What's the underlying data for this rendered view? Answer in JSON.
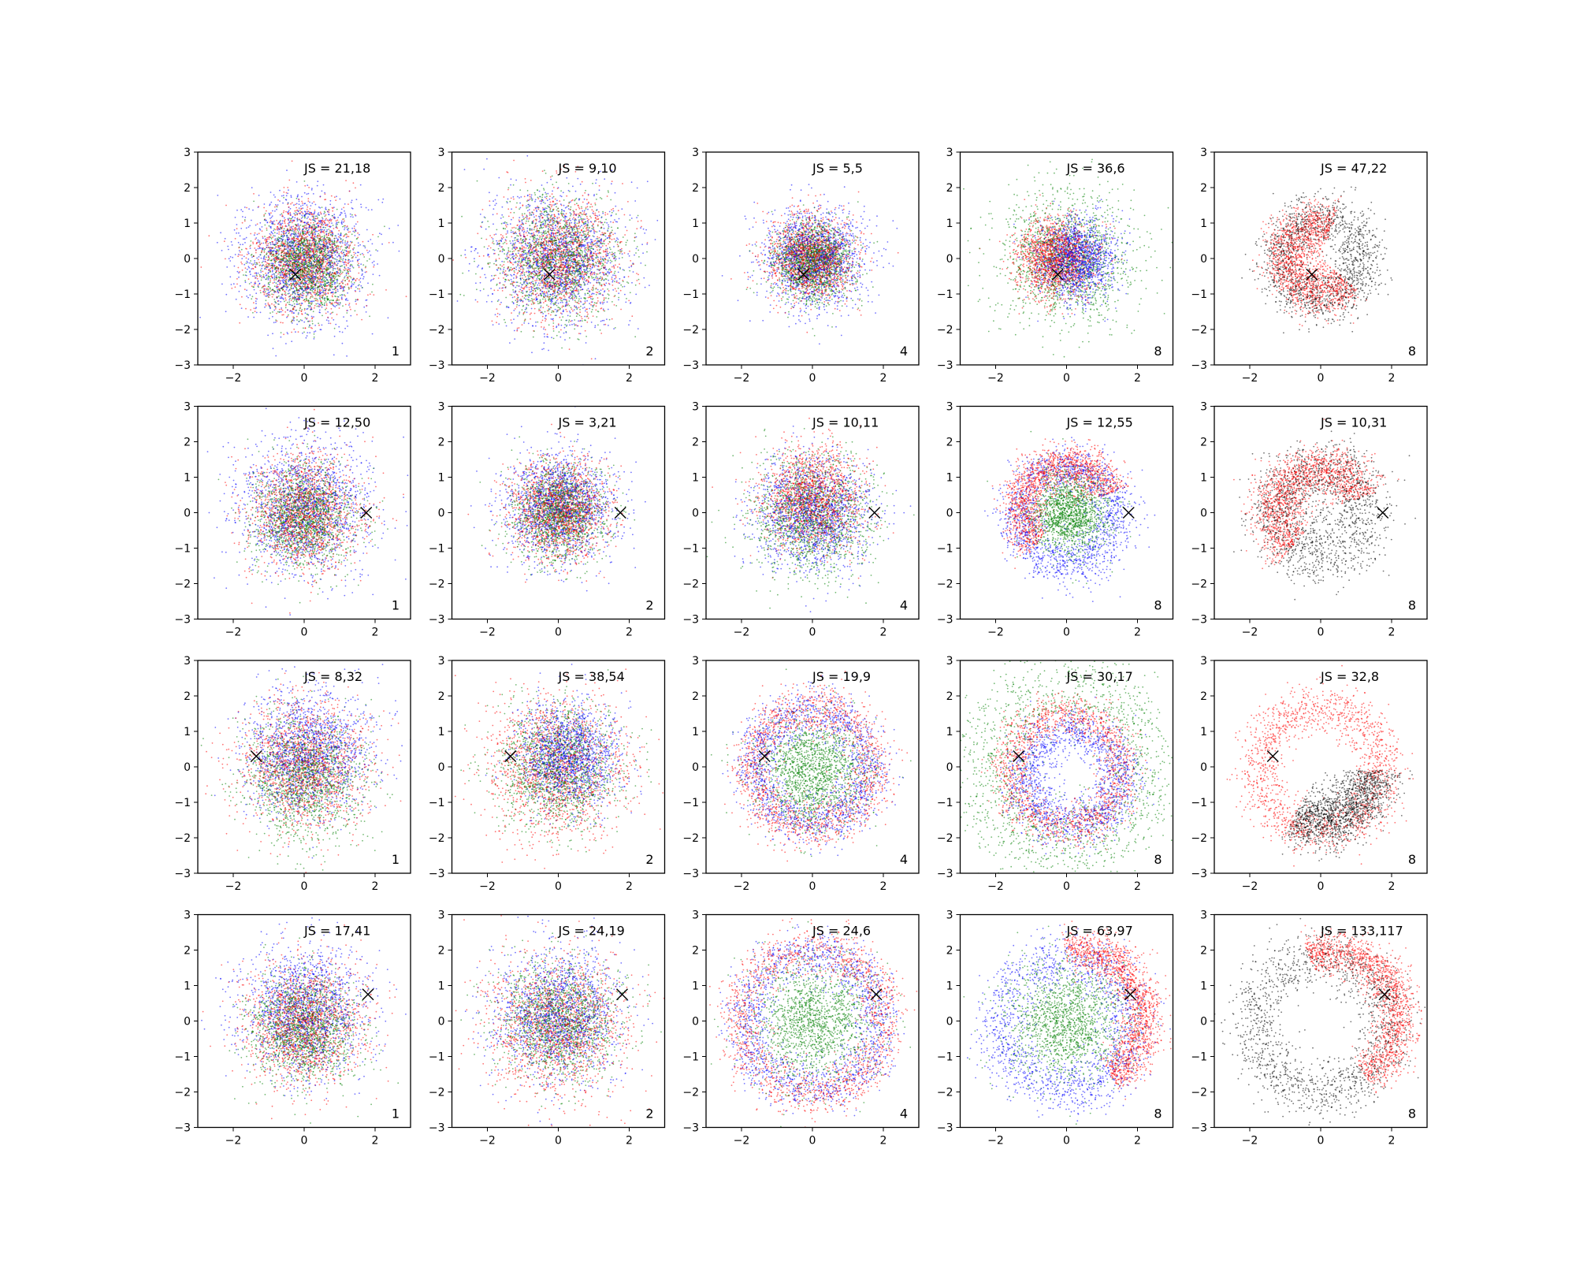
{
  "figure": {
    "colors": {
      "red": "#ff0000",
      "blue": "#0000ff",
      "green": "#008000",
      "black": "#000000"
    },
    "marker_symbol": "x-cross"
  },
  "chart_data": [
    {
      "type": "scatter",
      "row": 1,
      "col": 1,
      "annotation": "JS = 21,18",
      "corner_label": "1",
      "xlim": [
        -3,
        3
      ],
      "ylim": [
        -3,
        3
      ],
      "xticks": [
        -2,
        0,
        2
      ],
      "yticks": [
        -3,
        -2,
        -1,
        0,
        1,
        2,
        3
      ],
      "marker": {
        "x": -0.25,
        "y": -0.45
      },
      "points_per_series": 1500,
      "pattern": "blob",
      "series": [
        {
          "color": "#0000ff",
          "dist": "gauss",
          "cx": 0,
          "cy": 0,
          "s": 0.9
        },
        {
          "color": "#ff0000",
          "dist": "gauss",
          "cx": 0,
          "cy": -0.05,
          "s": 0.75
        },
        {
          "color": "#008000",
          "dist": "gauss",
          "cx": 0.05,
          "cy": -0.15,
          "s": 0.65
        }
      ]
    },
    {
      "type": "scatter",
      "row": 1,
      "col": 2,
      "annotation": "JS = 9,10",
      "corner_label": "2",
      "xlim": [
        -3,
        3
      ],
      "ylim": [
        -3,
        3
      ],
      "xticks": [
        -2,
        0,
        2
      ],
      "yticks": [
        -3,
        -2,
        -1,
        0,
        1,
        2,
        3
      ],
      "marker": {
        "x": -0.25,
        "y": -0.45
      },
      "points_per_series": 1500,
      "pattern": "blob",
      "series": [
        {
          "color": "#0000ff",
          "dist": "gauss",
          "cx": 0,
          "cy": 0,
          "s": 0.95
        },
        {
          "color": "#ff0000",
          "dist": "gauss",
          "cx": 0,
          "cy": 0,
          "s": 0.85
        },
        {
          "color": "#008000",
          "dist": "gauss",
          "cx": 0,
          "cy": 0,
          "s": 0.85
        }
      ]
    },
    {
      "type": "scatter",
      "row": 1,
      "col": 3,
      "annotation": "JS = 5,5",
      "corner_label": "4",
      "xlim": [
        -3,
        3
      ],
      "ylim": [
        -3,
        3
      ],
      "xticks": [
        -2,
        0,
        2
      ],
      "yticks": [
        -3,
        -2,
        -1,
        0,
        1,
        2,
        3
      ],
      "marker": {
        "x": -0.25,
        "y": -0.45
      },
      "points_per_series": 1500,
      "pattern": "blob",
      "series": [
        {
          "color": "#0000ff",
          "dist": "gauss",
          "cx": 0,
          "cy": 0,
          "s": 0.7
        },
        {
          "color": "#ff0000",
          "dist": "gauss",
          "cx": 0,
          "cy": 0,
          "s": 0.6
        },
        {
          "color": "#008000",
          "dist": "gauss",
          "cx": 0,
          "cy": -0.1,
          "s": 0.55
        }
      ]
    },
    {
      "type": "scatter",
      "row": 1,
      "col": 4,
      "annotation": "JS = 36,6",
      "corner_label": "8",
      "xlim": [
        -3,
        3
      ],
      "ylim": [
        -3,
        3
      ],
      "xticks": [
        -2,
        0,
        2
      ],
      "yticks": [
        -3,
        -2,
        -1,
        0,
        1,
        2,
        3
      ],
      "marker": {
        "x": -0.25,
        "y": -0.45
      },
      "points_per_series": 1500,
      "pattern": "blob",
      "series": [
        {
          "color": "#008000",
          "dist": "gauss",
          "cx": 0,
          "cy": 0,
          "s": 0.95
        },
        {
          "color": "#ff0000",
          "dist": "gauss",
          "cx": -0.3,
          "cy": 0,
          "s": 0.55
        },
        {
          "color": "#0000ff",
          "dist": "gauss",
          "cx": 0.3,
          "cy": 0,
          "s": 0.55
        }
      ]
    },
    {
      "type": "scatter",
      "row": 1,
      "col": 5,
      "annotation": "JS = 47,22",
      "corner_label": "8",
      "xlim": [
        -3,
        3
      ],
      "ylim": [
        -3,
        3
      ],
      "xticks": [
        -2,
        0,
        2
      ],
      "yticks": [
        -3,
        -2,
        -1,
        0,
        1,
        2,
        3
      ],
      "marker": {
        "x": -0.25,
        "y": -0.45
      },
      "points_per_series": 1500,
      "pattern": "ring",
      "series": [
        {
          "color": "#000000",
          "dist": "ring",
          "cx": 0,
          "cy": 0,
          "r": 1.2,
          "w": 0.35
        },
        {
          "color": "#ff0000",
          "dist": "arc",
          "cx": 0,
          "cy": 0,
          "r": 1.0,
          "w": 0.35,
          "a0": 70,
          "a1": 320
        }
      ]
    },
    {
      "type": "scatter",
      "row": 2,
      "col": 1,
      "annotation": "JS = 12,50",
      "corner_label": "1",
      "xlim": [
        -3,
        3
      ],
      "ylim": [
        -3,
        3
      ],
      "xticks": [
        -2,
        0,
        2
      ],
      "yticks": [
        -3,
        -2,
        -1,
        0,
        1,
        2,
        3
      ],
      "marker": {
        "x": 1.75,
        "y": 0.0
      },
      "points_per_series": 1500,
      "pattern": "blob",
      "series": [
        {
          "color": "#0000ff",
          "dist": "gauss",
          "cx": 0,
          "cy": 0.2,
          "s": 0.95
        },
        {
          "color": "#ff0000",
          "dist": "gauss",
          "cx": 0,
          "cy": 0,
          "s": 0.8
        },
        {
          "color": "#008000",
          "dist": "gauss",
          "cx": 0,
          "cy": -0.1,
          "s": 0.7
        }
      ]
    },
    {
      "type": "scatter",
      "row": 2,
      "col": 2,
      "annotation": "JS = 3,21",
      "corner_label": "2",
      "xlim": [
        -3,
        3
      ],
      "ylim": [
        -3,
        3
      ],
      "xticks": [
        -2,
        0,
        2
      ],
      "yticks": [
        -3,
        -2,
        -1,
        0,
        1,
        2,
        3
      ],
      "marker": {
        "x": 1.75,
        "y": 0.0
      },
      "points_per_series": 1500,
      "pattern": "blob",
      "series": [
        {
          "color": "#0000ff",
          "dist": "gauss",
          "cx": 0,
          "cy": 0.2,
          "s": 0.75
        },
        {
          "color": "#ff0000",
          "dist": "gauss",
          "cx": 0,
          "cy": 0.1,
          "s": 0.7
        },
        {
          "color": "#008000",
          "dist": "gauss",
          "cx": 0,
          "cy": 0,
          "s": 0.65
        }
      ]
    },
    {
      "type": "scatter",
      "row": 2,
      "col": 3,
      "annotation": "JS = 10,11",
      "corner_label": "4",
      "xlim": [
        -3,
        3
      ],
      "ylim": [
        -3,
        3
      ],
      "xticks": [
        -2,
        0,
        2
      ],
      "yticks": [
        -3,
        -2,
        -1,
        0,
        1,
        2,
        3
      ],
      "marker": {
        "x": 1.75,
        "y": 0.0
      },
      "points_per_series": 1500,
      "pattern": "blob",
      "series": [
        {
          "color": "#008000",
          "dist": "gauss",
          "cx": 0,
          "cy": -0.1,
          "s": 0.85
        },
        {
          "color": "#0000ff",
          "dist": "gauss",
          "cx": 0,
          "cy": 0,
          "s": 0.8
        },
        {
          "color": "#ff0000",
          "dist": "gauss",
          "cx": 0,
          "cy": 0.4,
          "s": 0.7
        }
      ]
    },
    {
      "type": "scatter",
      "row": 2,
      "col": 4,
      "annotation": "JS = 12,55",
      "corner_label": "8",
      "xlim": [
        -3,
        3
      ],
      "ylim": [
        -3,
        3
      ],
      "xticks": [
        -2,
        0,
        2
      ],
      "yticks": [
        -3,
        -2,
        -1,
        0,
        1,
        2,
        3
      ],
      "marker": {
        "x": 1.75,
        "y": 0.0
      },
      "points_per_series": 1500,
      "pattern": "ring",
      "series": [
        {
          "color": "#0000ff",
          "dist": "ring",
          "cx": 0,
          "cy": -0.1,
          "r": 1.4,
          "w": 0.35
        },
        {
          "color": "#ff0000",
          "dist": "arc",
          "cx": 0,
          "cy": 0.1,
          "r": 1.3,
          "w": 0.3,
          "a0": 20,
          "a1": 230
        },
        {
          "color": "#008000",
          "dist": "gauss",
          "cx": 0.1,
          "cy": 0,
          "s": 0.55
        }
      ]
    },
    {
      "type": "scatter",
      "row": 2,
      "col": 5,
      "annotation": "JS = 10,31",
      "corner_label": "8",
      "xlim": [
        -3,
        3
      ],
      "ylim": [
        -3,
        3
      ],
      "xticks": [
        -2,
        0,
        2
      ],
      "yticks": [
        -3,
        -2,
        -1,
        0,
        1,
        2,
        3
      ],
      "marker": {
        "x": 1.75,
        "y": 0.0
      },
      "points_per_series": 1500,
      "pattern": "ring",
      "series": [
        {
          "color": "#000000",
          "dist": "ring",
          "cx": 0,
          "cy": 0,
          "r": 1.3,
          "w": 0.45
        },
        {
          "color": "#ff0000",
          "dist": "arc",
          "cx": 0,
          "cy": 0,
          "r": 1.3,
          "w": 0.35,
          "a0": 20,
          "a1": 230
        }
      ]
    },
    {
      "type": "scatter",
      "row": 3,
      "col": 1,
      "annotation": "JS = 8,32",
      "corner_label": "1",
      "xlim": [
        -3,
        3
      ],
      "ylim": [
        -3,
        3
      ],
      "xticks": [
        -2,
        0,
        2
      ],
      "yticks": [
        -3,
        -2,
        -1,
        0,
        1,
        2,
        3
      ],
      "marker": {
        "x": -1.35,
        "y": 0.3
      },
      "points_per_series": 1500,
      "pattern": "blob",
      "series": [
        {
          "color": "#0000ff",
          "dist": "gauss",
          "cx": 0.1,
          "cy": 0.4,
          "s": 0.85
        },
        {
          "color": "#ff0000",
          "dist": "gauss",
          "cx": 0,
          "cy": 0,
          "s": 0.9
        },
        {
          "color": "#008000",
          "dist": "gauss",
          "cx": 0,
          "cy": -0.3,
          "s": 0.85
        }
      ]
    },
    {
      "type": "scatter",
      "row": 3,
      "col": 2,
      "annotation": "JS = 38,54",
      "corner_label": "2",
      "xlim": [
        -3,
        3
      ],
      "ylim": [
        -3,
        3
      ],
      "xticks": [
        -2,
        0,
        2
      ],
      "yticks": [
        -3,
        -2,
        -1,
        0,
        1,
        2,
        3
      ],
      "marker": {
        "x": -1.35,
        "y": 0.3
      },
      "points_per_series": 1500,
      "pattern": "blob",
      "series": [
        {
          "color": "#ff0000",
          "dist": "gauss",
          "cx": 0,
          "cy": 0,
          "s": 1.0
        },
        {
          "color": "#008000",
          "dist": "gauss",
          "cx": 0,
          "cy": 0,
          "s": 0.85
        },
        {
          "color": "#0000ff",
          "dist": "gauss",
          "cx": 0.3,
          "cy": 0.3,
          "s": 0.7
        }
      ]
    },
    {
      "type": "scatter",
      "row": 3,
      "col": 3,
      "annotation": "JS = 19,9",
      "corner_label": "4",
      "xlim": [
        -3,
        3
      ],
      "ylim": [
        -3,
        3
      ],
      "xticks": [
        -2,
        0,
        2
      ],
      "yticks": [
        -3,
        -2,
        -1,
        0,
        1,
        2,
        3
      ],
      "marker": {
        "x": -1.35,
        "y": 0.3
      },
      "points_per_series": 1500,
      "pattern": "ring",
      "series": [
        {
          "color": "#ff0000",
          "dist": "ring",
          "cx": 0,
          "cy": 0,
          "r": 1.7,
          "w": 0.35
        },
        {
          "color": "#0000ff",
          "dist": "ring",
          "cx": 0,
          "cy": 0,
          "r": 1.6,
          "w": 0.35
        },
        {
          "color": "#008000",
          "dist": "gauss",
          "cx": 0,
          "cy": -0.1,
          "s": 0.75
        }
      ]
    },
    {
      "type": "scatter",
      "row": 3,
      "col": 4,
      "annotation": "JS = 30,17",
      "corner_label": "8",
      "xlim": [
        -3,
        3
      ],
      "ylim": [
        -3,
        3
      ],
      "xticks": [
        -2,
        0,
        2
      ],
      "yticks": [
        -3,
        -2,
        -1,
        0,
        1,
        2,
        3
      ],
      "marker": {
        "x": -1.35,
        "y": 0.3
      },
      "points_per_series": 1500,
      "pattern": "ring",
      "series": [
        {
          "color": "#008000",
          "dist": "ring",
          "cx": 0,
          "cy": 0,
          "r": 2.3,
          "w": 0.6
        },
        {
          "color": "#ff0000",
          "dist": "ring",
          "cx": 0,
          "cy": -0.1,
          "r": 1.6,
          "w": 0.3
        },
        {
          "color": "#0000ff",
          "dist": "ring",
          "cx": 0.2,
          "cy": -0.3,
          "r": 1.35,
          "w": 0.35
        }
      ]
    },
    {
      "type": "scatter",
      "row": 3,
      "col": 5,
      "annotation": "JS = 32,8",
      "corner_label": "8",
      "xlim": [
        -3,
        3
      ],
      "ylim": [
        -3,
        3
      ],
      "xticks": [
        -2,
        0,
        2
      ],
      "yticks": [
        -3,
        -2,
        -1,
        0,
        1,
        2,
        3
      ],
      "marker": {
        "x": -1.35,
        "y": 0.3
      },
      "points_per_series": 1500,
      "pattern": "ring",
      "series": [
        {
          "color": "#ff0000",
          "dist": "ring",
          "cx": 0,
          "cy": -0.1,
          "r": 1.75,
          "w": 0.35
        },
        {
          "color": "#000000",
          "dist": "arc",
          "cx": 0,
          "cy": -0.1,
          "r": 1.5,
          "w": 0.4,
          "a0": 240,
          "a1": 360
        }
      ]
    },
    {
      "type": "scatter",
      "row": 4,
      "col": 1,
      "annotation": "JS = 17,41",
      "corner_label": "1",
      "xlim": [
        -3,
        3
      ],
      "ylim": [
        -3,
        3
      ],
      "xticks": [
        -2,
        0,
        2
      ],
      "yticks": [
        -3,
        -2,
        -1,
        0,
        1,
        2,
        3
      ],
      "marker": {
        "x": 1.8,
        "y": 0.75
      },
      "points_per_series": 1500,
      "pattern": "blob",
      "series": [
        {
          "color": "#0000ff",
          "dist": "gauss",
          "cx": 0,
          "cy": 0.3,
          "s": 0.9
        },
        {
          "color": "#ff0000",
          "dist": "gauss",
          "cx": 0,
          "cy": -0.1,
          "s": 0.85
        },
        {
          "color": "#008000",
          "dist": "gauss",
          "cx": 0,
          "cy": -0.2,
          "s": 0.75
        }
      ]
    },
    {
      "type": "scatter",
      "row": 4,
      "col": 2,
      "annotation": "JS = 24,19",
      "corner_label": "2",
      "xlim": [
        -3,
        3
      ],
      "ylim": [
        -3,
        3
      ],
      "xticks": [
        -2,
        0,
        2
      ],
      "yticks": [
        -3,
        -2,
        -1,
        0,
        1,
        2,
        3
      ],
      "marker": {
        "x": 1.8,
        "y": 0.75
      },
      "points_per_series": 1500,
      "pattern": "blob",
      "series": [
        {
          "color": "#ff0000",
          "dist": "gauss",
          "cx": 0,
          "cy": -0.1,
          "s": 1.0
        },
        {
          "color": "#0000ff",
          "dist": "gauss",
          "cx": 0,
          "cy": 0.2,
          "s": 0.9
        },
        {
          "color": "#008000",
          "dist": "gauss",
          "cx": 0,
          "cy": 0,
          "s": 0.85
        }
      ]
    },
    {
      "type": "scatter",
      "row": 4,
      "col": 3,
      "annotation": "JS = 24,6",
      "corner_label": "4",
      "xlim": [
        -3,
        3
      ],
      "ylim": [
        -3,
        3
      ],
      "xticks": [
        -2,
        0,
        2
      ],
      "yticks": [
        -3,
        -2,
        -1,
        0,
        1,
        2,
        3
      ],
      "marker": {
        "x": 1.8,
        "y": 0.75
      },
      "points_per_series": 1500,
      "pattern": "ring",
      "series": [
        {
          "color": "#ff0000",
          "dist": "ring",
          "cx": 0,
          "cy": 0,
          "r": 2.05,
          "w": 0.35
        },
        {
          "color": "#0000ff",
          "dist": "ring",
          "cx": 0,
          "cy": 0,
          "r": 1.9,
          "w": 0.35
        },
        {
          "color": "#008000",
          "dist": "gauss",
          "cx": 0,
          "cy": 0,
          "s": 0.85
        }
      ]
    },
    {
      "type": "scatter",
      "row": 4,
      "col": 4,
      "annotation": "JS = 63,97",
      "corner_label": "8",
      "xlim": [
        -3,
        3
      ],
      "ylim": [
        -3,
        3
      ],
      "xticks": [
        -2,
        0,
        2
      ],
      "yticks": [
        -3,
        -2,
        -1,
        0,
        1,
        2,
        3
      ],
      "marker": {
        "x": 1.8,
        "y": 0.75
      },
      "points_per_series": 1500,
      "pattern": "ring",
      "series": [
        {
          "color": "#0000ff",
          "dist": "ring",
          "cx": 0,
          "cy": -0.1,
          "r": 1.85,
          "w": 0.4
        },
        {
          "color": "#ff0000",
          "dist": "arc",
          "cx": 0.3,
          "cy": 0.1,
          "r": 1.9,
          "w": 0.3,
          "a0": -60,
          "a1": 100
        },
        {
          "color": "#008000",
          "dist": "gauss",
          "cx": 0,
          "cy": 0,
          "s": 0.8
        }
      ]
    },
    {
      "type": "scatter",
      "row": 4,
      "col": 5,
      "annotation": "JS = 133,117",
      "corner_label": "8",
      "xlim": [
        -3,
        3
      ],
      "ylim": [
        -3,
        3
      ],
      "xticks": [
        -2,
        0,
        2
      ],
      "yticks": [
        -3,
        -2,
        -1,
        0,
        1,
        2,
        3
      ],
      "marker": {
        "x": 1.8,
        "y": 0.75
      },
      "points_per_series": 1500,
      "pattern": "ring",
      "series": [
        {
          "color": "#000000",
          "dist": "ring",
          "cx": 0,
          "cy": -0.1,
          "r": 1.9,
          "w": 0.4
        },
        {
          "color": "#ff0000",
          "dist": "arc",
          "cx": 0.3,
          "cy": 0.1,
          "r": 1.9,
          "w": 0.3,
          "a0": -60,
          "a1": 110
        }
      ]
    }
  ]
}
